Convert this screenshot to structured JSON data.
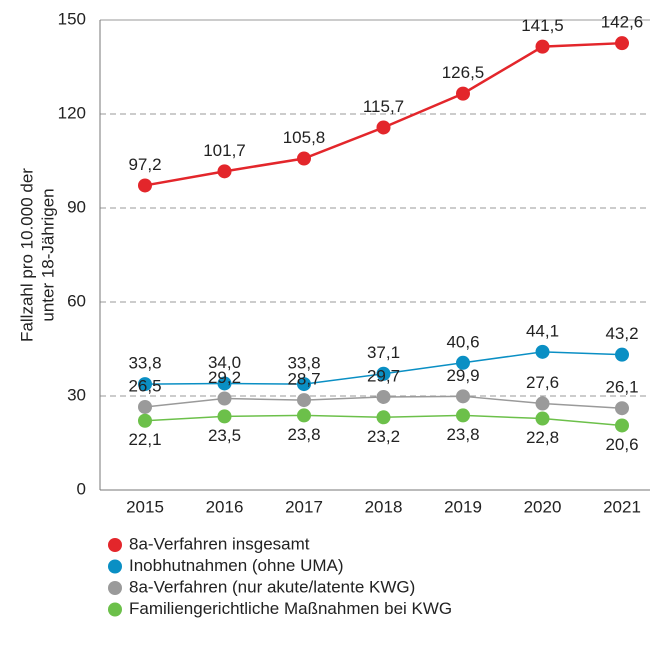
{
  "chart_data": {
    "type": "line",
    "ylabel": [
      "Fallzahl pro 10.000 der",
      "unter 18-Jährigen"
    ],
    "categories": [
      "2015",
      "2016",
      "2017",
      "2018",
      "2019",
      "2020",
      "2021"
    ],
    "series": [
      {
        "name": "8a-Verfahren insgesamt",
        "color": "#e3262b",
        "values": [
          97.2,
          101.7,
          105.8,
          115.7,
          126.5,
          141.5,
          142.6
        ],
        "value_labels": [
          "97,2",
          "101,7",
          "105,8",
          "115,7",
          "126,5",
          "141,5",
          "142,6"
        ]
      },
      {
        "name": "Inobhutnahmen (ohne UMA)",
        "color": "#0a8fc4",
        "values": [
          33.8,
          34.0,
          33.8,
          37.1,
          40.6,
          44.1,
          43.2
        ],
        "value_labels": [
          "33,8",
          "34,0",
          "33,8",
          "37,1",
          "40,6",
          "44,1",
          "43,2"
        ]
      },
      {
        "name": "8a-Verfahren (nur akute/latente KWG)",
        "color": "#9a9a9a",
        "values": [
          26.5,
          29.2,
          28.7,
          29.7,
          29.9,
          27.6,
          26.1
        ],
        "value_labels": [
          "26,5",
          "29,2",
          "28,7",
          "29,7",
          "29,9",
          "27,6",
          "26,1"
        ]
      },
      {
        "name": "Familiengerichtliche Maßnahmen bei KWG",
        "color": "#6cc04a",
        "values": [
          22.1,
          23.5,
          23.8,
          23.2,
          23.8,
          22.8,
          20.6
        ],
        "value_labels": [
          "22,1",
          "23,5",
          "23,8",
          "23,2",
          "23,8",
          "22,8",
          "20,6"
        ]
      }
    ],
    "ylim": [
      0,
      150
    ],
    "yticks": [
      0,
      30,
      60,
      90,
      120,
      150
    ],
    "grid": true
  }
}
